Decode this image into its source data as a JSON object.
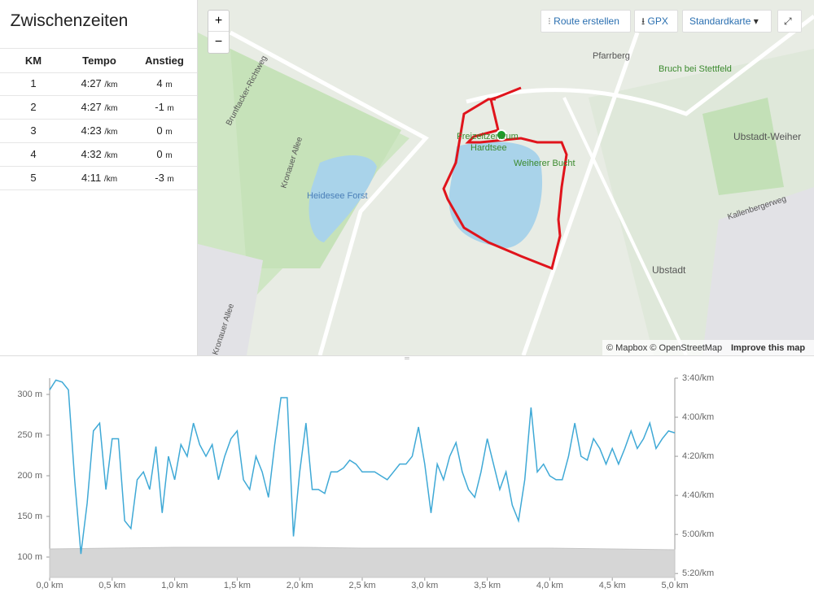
{
  "splits": {
    "title": "Zwischenzeiten",
    "headers": [
      "KM",
      "Tempo",
      "Anstieg"
    ],
    "rows": [
      {
        "km": "1",
        "tempo": "4:27",
        "tempo_unit": "/km",
        "climb": "4",
        "climb_unit": "m"
      },
      {
        "km": "2",
        "tempo": "4:27",
        "tempo_unit": "/km",
        "climb": "-1",
        "climb_unit": "m"
      },
      {
        "km": "3",
        "tempo": "4:23",
        "tempo_unit": "/km",
        "climb": "0",
        "climb_unit": "m"
      },
      {
        "km": "4",
        "tempo": "4:32",
        "tempo_unit": "/km",
        "climb": "0",
        "climb_unit": "m"
      },
      {
        "km": "5",
        "tempo": "4:11",
        "tempo_unit": "/km",
        "climb": "-3",
        "climb_unit": "m"
      }
    ]
  },
  "map": {
    "zoom_in": "+",
    "zoom_out": "−",
    "buttons": {
      "route": "Route erstellen",
      "gpx": "GPX",
      "layer": "Standardkarte"
    },
    "places": {
      "pfarrberg": "Pfarrberg",
      "bruch": "Bruch bei Stettfeld",
      "ubstadt_weiher": "Ubstadt-Weiher",
      "freizeit": "Freizeitzentrum",
      "hardtsee": "Hardtsee",
      "weiherer": "Weiherer Bucht",
      "heidesee": "Heidesee Forst",
      "brunft": "Brunftacker-Richtweg",
      "kronauer1": "Kronauer Allee",
      "kronauer2": "Kronauer Allee",
      "kallenberg": "Kallenbergerweg",
      "ubstadt": "Ubstadt"
    },
    "attribution": "© Mapbox © OpenStreetMap",
    "improve": "Improve this map"
  },
  "chart_data": {
    "type": "line",
    "x": [
      0,
      0.05,
      0.1,
      0.15,
      0.2,
      0.25,
      0.3,
      0.35,
      0.4,
      0.45,
      0.5,
      0.55,
      0.6,
      0.65,
      0.7,
      0.75,
      0.8,
      0.85,
      0.9,
      0.95,
      1.0,
      1.05,
      1.1,
      1.15,
      1.2,
      1.25,
      1.3,
      1.35,
      1.4,
      1.45,
      1.5,
      1.55,
      1.6,
      1.65,
      1.7,
      1.75,
      1.8,
      1.85,
      1.9,
      1.95,
      2.0,
      2.05,
      2.1,
      2.15,
      2.2,
      2.25,
      2.3,
      2.35,
      2.4,
      2.45,
      2.5,
      2.55,
      2.6,
      2.65,
      2.7,
      2.75,
      2.8,
      2.85,
      2.9,
      2.95,
      3.0,
      3.05,
      3.1,
      3.15,
      3.2,
      3.25,
      3.3,
      3.35,
      3.4,
      3.45,
      3.5,
      3.55,
      3.6,
      3.65,
      3.7,
      3.75,
      3.8,
      3.85,
      3.9,
      3.95,
      4.0,
      4.05,
      4.1,
      4.15,
      4.2,
      4.25,
      4.3,
      4.35,
      4.4,
      4.45,
      4.5,
      4.55,
      4.6,
      4.65,
      4.7,
      4.75,
      4.8,
      4.85,
      4.9,
      4.95,
      5.0
    ],
    "series": [
      {
        "name": "Tempo",
        "color": "#3fa9d6",
        "axis": "y2",
        "values": [
          226,
          221,
          222,
          226,
          272,
          310,
          284,
          247,
          243,
          277,
          251,
          251,
          293,
          297,
          272,
          268,
          277,
          255,
          289,
          260,
          272,
          254,
          260,
          243,
          254,
          260,
          254,
          272,
          260,
          251,
          247,
          272,
          277,
          260,
          268,
          281,
          254,
          230,
          230,
          301,
          268,
          243,
          277,
          277,
          279,
          268,
          268,
          266,
          262,
          264,
          268,
          268,
          268,
          270,
          272,
          268,
          264,
          264,
          260,
          245,
          264,
          289,
          264,
          272,
          260,
          253,
          268,
          277,
          281,
          268,
          251,
          264,
          277,
          268,
          285,
          293,
          272,
          235,
          268,
          264,
          270,
          272,
          272,
          260,
          243,
          260,
          262,
          251,
          256,
          264,
          256,
          264,
          256,
          247,
          256,
          251,
          243,
          256,
          251,
          247,
          248
        ]
      },
      {
        "name": "Höhe",
        "color": "#d6d6d6",
        "axis": "y",
        "x": [
          0,
          0.5,
          1.0,
          1.5,
          2.0,
          2.5,
          3.0,
          3.5,
          4.0,
          4.5,
          5.0
        ],
        "values": [
          110,
          111,
          112,
          112,
          112,
          111,
          111,
          111,
          111,
          110,
          109
        ]
      }
    ],
    "xlim": [
      0,
      5.0
    ],
    "xticks": [
      {
        "value": 0,
        "label": "0,0 km"
      },
      {
        "value": 0.5,
        "label": "0,5 km"
      },
      {
        "value": 1.0,
        "label": "1,0 km"
      },
      {
        "value": 1.5,
        "label": "1,5 km"
      },
      {
        "value": 2.0,
        "label": "2,0 km"
      },
      {
        "value": 2.5,
        "label": "2,5 km"
      },
      {
        "value": 3.0,
        "label": "3,0 km"
      },
      {
        "value": 3.5,
        "label": "3,5 km"
      },
      {
        "value": 4.0,
        "label": "4,0 km"
      },
      {
        "value": 4.5,
        "label": "4,5 km"
      },
      {
        "value": 5.0,
        "label": "5,0 km"
      }
    ],
    "ylim": [
      75,
      320
    ],
    "yticks": [
      {
        "value": 100,
        "label": "100 m"
      },
      {
        "value": 150,
        "label": "150 m"
      },
      {
        "value": 200,
        "label": "200 m"
      },
      {
        "value": 250,
        "label": "250 m"
      },
      {
        "value": 300,
        "label": "300 m"
      }
    ],
    "y2lim": [
      322,
      220
    ],
    "y2ticks": [
      {
        "value": 220,
        "label": "3:40/km"
      },
      {
        "value": 240,
        "label": "4:00/km"
      },
      {
        "value": 260,
        "label": "4:20/km"
      },
      {
        "value": 280,
        "label": "4:40/km"
      },
      {
        "value": 300,
        "label": "5:00/km"
      },
      {
        "value": 320,
        "label": "5:20/km"
      }
    ]
  }
}
